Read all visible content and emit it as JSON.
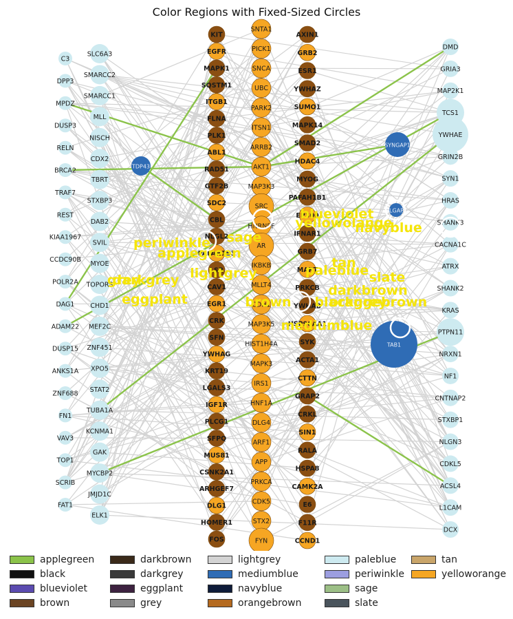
{
  "title": "Color Regions with Fixed-Sized Circles",
  "colors": {
    "edge": "#d3d3d3",
    "edge_highlight": "#8bc34a",
    "paleblue": "#cdeaf0",
    "mediumblue": "#2f6cb5",
    "orange": "#f6a623",
    "brown": "#8b4f12",
    "label": "#f5e50a"
  },
  "region_labels": [
    "blueviolet",
    "yellowolange",
    "navyblue",
    "sage",
    "periwinkle",
    "applegreen",
    "lightgrey",
    "darkgrey",
    "eggplant",
    "grey",
    "paleblue",
    "tan",
    "slate",
    "darkbrown",
    "brown",
    "orangebrown",
    "blackgrey",
    "mediumblue"
  ],
  "columns": {
    "col1": [
      "C3",
      "DPP3",
      "MPDZ",
      "DUSP3",
      "RELN",
      "BRCA2",
      "TRAF7",
      "REST",
      "KIAA1967",
      "CCDC90B",
      "POLR2A",
      "DAG1",
      "ADAM22",
      "DUSP15",
      "ANKS1A",
      "ZNF688",
      "FN1",
      "VAV3",
      "TOP1",
      "SCRIB",
      "FAT1"
    ],
    "col2": [
      "SLC6A3",
      "SMARCC2",
      "SMARCC1",
      "MLL",
      "NISCH",
      "CDX2",
      "TBRT",
      "STXBP3",
      "DAB2",
      "SVIL",
      "MYOE",
      "TOPORS",
      "CHD1",
      "MEF2C",
      "ZNF451",
      "XPO5",
      "STAT2",
      "TUBA1A",
      "KCNMA1",
      "GAK",
      "MYCBP2",
      "JMJD1C",
      "ELK1"
    ],
    "col3": [
      "KIT",
      "EGFR",
      "MAPK1",
      "SQSTM1",
      "ITGB1",
      "FLNA",
      "PLK1",
      "ABL1",
      "RAD51",
      "GTF2B",
      "SDC2",
      "CBL",
      "NLGL2",
      "PAFAH1B3",
      "LSR",
      "CAV1",
      "EGR1",
      "CRK",
      "SFN",
      "YWHAG",
      "KRT19",
      "LGALS3",
      "IGF1R",
      "PLCG1",
      "SFPQ",
      "MUS81",
      "CSNK2A1",
      "ARHGEF7",
      "DLG1",
      "HOMER1",
      "FOS"
    ],
    "col4": [
      "SNTA1",
      "PICK1",
      "SNCA",
      "UBC",
      "PARK2",
      "ITSN1",
      "ARRB2",
      "AKT1",
      "MAP3K3",
      "SRC",
      "HNRNPF",
      "AR",
      "IKBKB",
      "MLLT4",
      "CDH1",
      "MAP3K5",
      "HIST1H4A",
      "MAPK3",
      "IRS1",
      "HNF1A",
      "DLG4",
      "ARF1",
      "APP",
      "PRKCA",
      "CDK5",
      "STX2",
      "FYN"
    ],
    "col5": [
      "AXIN1",
      "GRB2",
      "ESR1",
      "YWHAZ",
      "SUMO1",
      "MAPK14",
      "SMAD2",
      "HDAC4",
      "MYOG",
      "PAFAH1B1",
      "EP300",
      "IFNAR1",
      "GRB7",
      "MAPT",
      "PRKCB",
      "YWHAB",
      "HSP90AA1",
      "SYK",
      "ACTA1",
      "CTTN",
      "GRAP2",
      "CRKL",
      "SIN1",
      "RALA",
      "HSPA8",
      "CAMK2A",
      "E6",
      "F11R",
      "CCND1"
    ],
    "col6": [
      "SYNGAP1",
      "DLGAP1",
      "TAB1"
    ],
    "col7": [
      "DMD",
      "GRIA3",
      "MAP2K1",
      "TCS1",
      "YWHAE",
      "GRIN2B",
      "SYN1",
      "HRAS",
      "SHANK3",
      "CACNA1C",
      "ATRX",
      "SHANK2",
      "KRAS",
      "PTPN11",
      "NRXN1",
      "NF1",
      "CNTNAP2",
      "STXBP1",
      "NLGN3",
      "CDKL5",
      "ACSL4",
      "L1CAM",
      "DCX"
    ]
  },
  "legend": [
    {
      "label": "applegreen",
      "color": "#8bc34a"
    },
    {
      "label": "black",
      "color": "#111111"
    },
    {
      "label": "blueviolet",
      "color": "#5b4bb0"
    },
    {
      "label": "brown",
      "color": "#6b4423"
    },
    {
      "label": "darkbrown",
      "color": "#3b2a1a"
    },
    {
      "label": "darkgrey",
      "color": "#3a3a3a"
    },
    {
      "label": "eggplant",
      "color": "#3d2240"
    },
    {
      "label": "grey",
      "color": "#8a8a8a"
    },
    {
      "label": "lightgrey",
      "color": "#d3d3d3"
    },
    {
      "label": "mediumblue",
      "color": "#2f6cb5"
    },
    {
      "label": "navyblue",
      "color": "#0f1c3a"
    },
    {
      "label": "orangebrown",
      "color": "#b56a1f"
    },
    {
      "label": "paleblue",
      "color": "#cdeaf0"
    },
    {
      "label": "periwinkle",
      "color": "#9c9ee0"
    },
    {
      "label": "sage",
      "color": "#9cbf86"
    },
    {
      "label": "slate",
      "color": "#4a545c"
    },
    {
      "label": "tan",
      "color": "#c9a56a"
    },
    {
      "label": "yelloworange",
      "color": "#f5a623"
    }
  ]
}
